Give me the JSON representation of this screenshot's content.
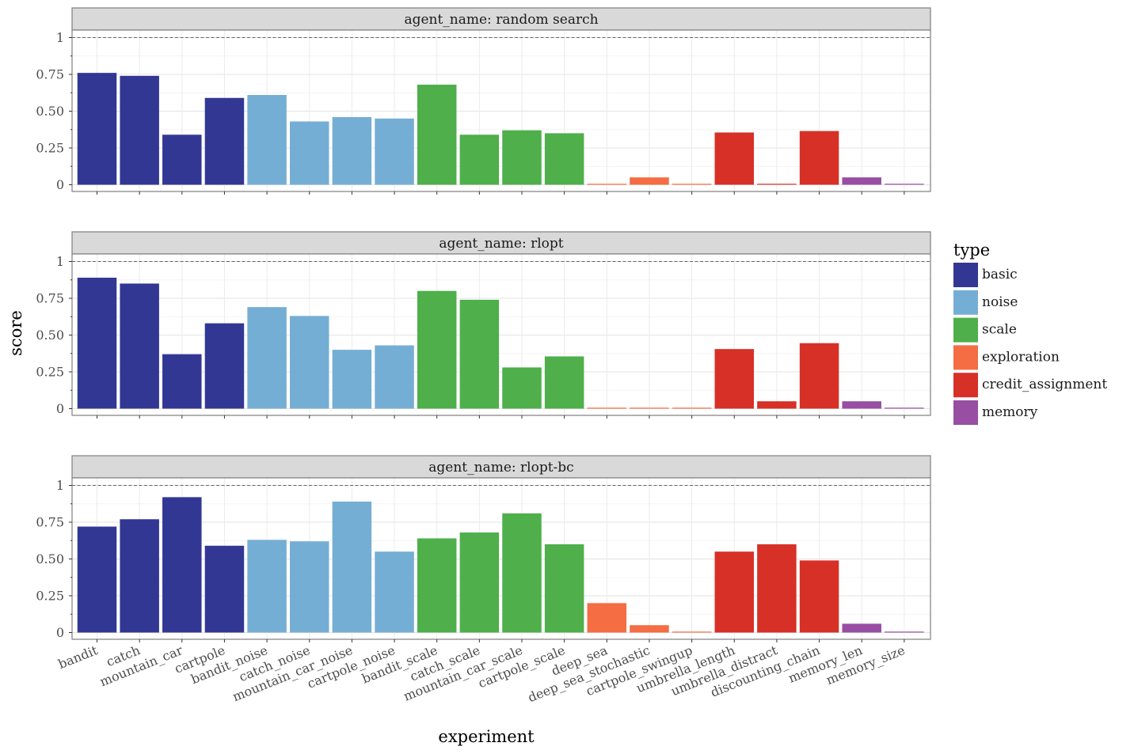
{
  "chart_data": {
    "type": "bar",
    "xlabel": "experiment",
    "ylabel": "score",
    "ylim": [
      0,
      1
    ],
    "y_ticks": [
      0,
      0.25,
      0.5,
      0.75,
      1
    ],
    "y_tick_labels": [
      "0",
      "0.25",
      "0.50",
      "0.75",
      "1"
    ],
    "reference_line": 1,
    "categories": [
      "bandit",
      "catch",
      "mountain_car",
      "cartpole",
      "bandit_noise",
      "catch_noise",
      "mountain_car_noise",
      "cartpole_noise",
      "bandit_scale",
      "catch_scale",
      "mountain_car_scale",
      "cartpole_scale",
      "deep_sea",
      "deep_sea_stochastic",
      "cartpole_swingup",
      "umbrella_length",
      "umbrella_distract",
      "discounting_chain",
      "memory_len",
      "memory_size"
    ],
    "category_types": [
      "basic",
      "basic",
      "basic",
      "basic",
      "noise",
      "noise",
      "noise",
      "noise",
      "scale",
      "scale",
      "scale",
      "scale",
      "exploration",
      "exploration",
      "exploration",
      "credit_assignment",
      "credit_assignment",
      "credit_assignment",
      "memory",
      "memory"
    ],
    "legend": {
      "title": "type",
      "entries": [
        {
          "label": "basic",
          "color": "#333794"
        },
        {
          "label": "noise",
          "color": "#75aed4"
        },
        {
          "label": "scale",
          "color": "#4faf4b"
        },
        {
          "label": "exploration",
          "color": "#f46d43"
        },
        {
          "label": "credit_assignment",
          "color": "#d73027"
        },
        {
          "label": "memory",
          "color": "#984ea3"
        }
      ]
    },
    "facets": [
      {
        "title": "agent_name: random search",
        "values": [
          0.76,
          0.74,
          0.34,
          0.59,
          0.61,
          0.43,
          0.46,
          0.45,
          0.68,
          0.34,
          0.37,
          0.35,
          0.005,
          0.05,
          0.005,
          0.355,
          0.005,
          0.365,
          0.05,
          0.005
        ]
      },
      {
        "title": "agent_name: rlopt",
        "values": [
          0.89,
          0.85,
          0.37,
          0.58,
          0.69,
          0.63,
          0.4,
          0.43,
          0.8,
          0.74,
          0.28,
          0.355,
          0.005,
          0.005,
          0.005,
          0.405,
          0.05,
          0.445,
          0.05,
          0.005
        ]
      },
      {
        "title": "agent_name: rlopt-bc",
        "values": [
          0.72,
          0.77,
          0.92,
          0.59,
          0.63,
          0.62,
          0.89,
          0.55,
          0.64,
          0.68,
          0.81,
          0.6,
          0.2,
          0.05,
          0.005,
          0.55,
          0.6,
          0.49,
          0.06,
          0.005
        ]
      }
    ]
  }
}
